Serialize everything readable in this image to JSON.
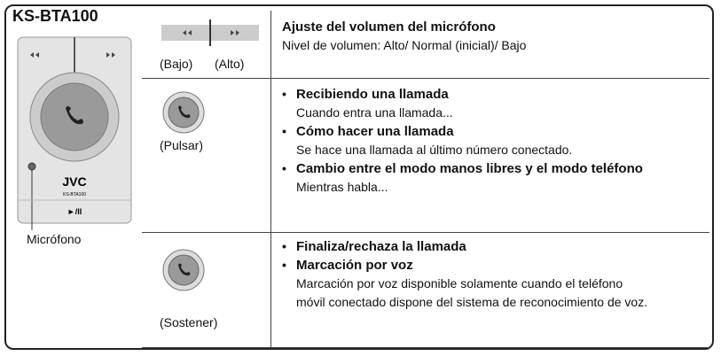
{
  "panel": {
    "title": "KS-BTA100",
    "brand": "JVC",
    "model": "KS-BTA100",
    "play_label": "►/II",
    "mic_label": "Micrófono"
  },
  "table": {
    "rows": [
      {
        "labels": [
          "(Bajo)",
          "(Alto)"
        ],
        "items": [
          {
            "heading": "Ajuste del volumen del micrófono",
            "lines": [
              "Nivel de volumen: Alto/ Normal (inicial)/ Bajo"
            ]
          }
        ]
      },
      {
        "labels": [
          "(Pulsar)"
        ],
        "items": [
          {
            "heading": "Recibiendo una llamada",
            "lines": [
              "Cuando entra una llamada..."
            ]
          },
          {
            "heading": "Cómo hacer una llamada",
            "lines": [
              "Se hace una llamada al último número conectado."
            ]
          },
          {
            "heading": "Cambio entre el modo manos libres y el modo teléfono",
            "lines": [
              "Mientras habla..."
            ]
          }
        ]
      },
      {
        "labels": [
          "(Sostener)"
        ],
        "items": [
          {
            "heading": "Finaliza/rechaza la llamada"
          },
          {
            "heading": "Marcación por voz",
            "lines": [
              "Marcación por voz disponible solamente cuando el teléfono",
              "móvil conectado dispone del sistema de reconocimiento de voz."
            ]
          }
        ]
      }
    ]
  }
}
